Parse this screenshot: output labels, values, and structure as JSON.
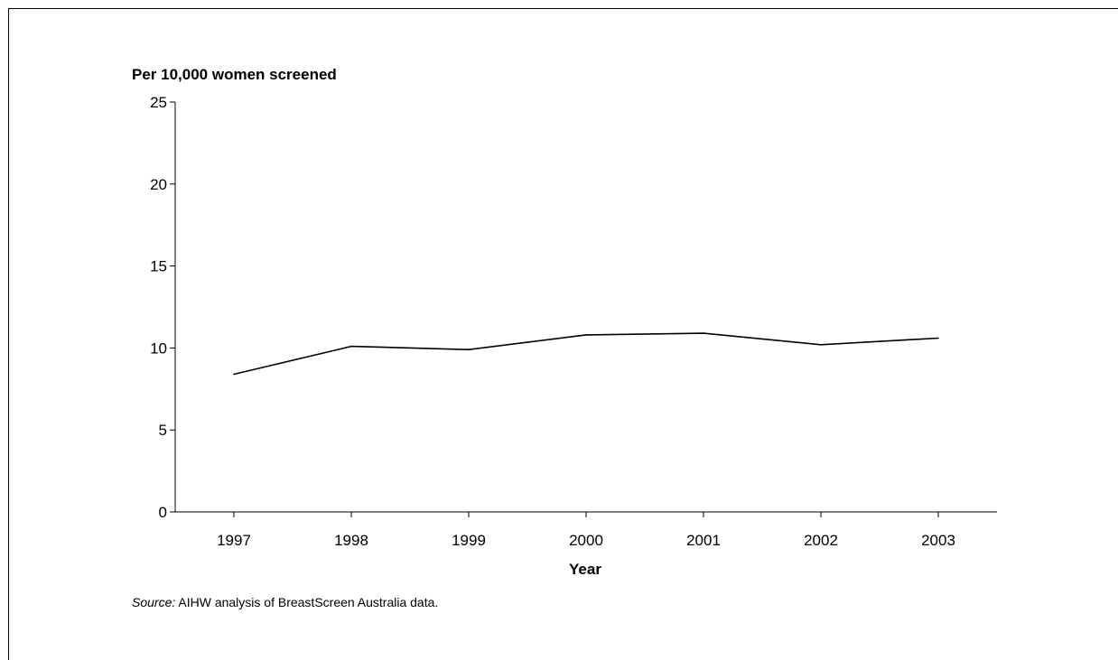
{
  "chart_data": {
    "type": "line",
    "title": "",
    "ylabel": "Per 10,000 women screened",
    "xlabel": "Year",
    "x": [
      "1997",
      "1998",
      "1999",
      "2000",
      "2001",
      "2002",
      "2003"
    ],
    "series": [
      {
        "values": [
          8.4,
          10.1,
          9.9,
          10.8,
          10.9,
          10.2,
          10.6
        ]
      }
    ],
    "ylim": [
      0,
      25
    ],
    "yticks": [
      0,
      5,
      10,
      15,
      20,
      25
    ],
    "grid": false,
    "legend": "none",
    "line_color": "#000000"
  },
  "source": {
    "label": "Source:",
    "text": "AIHW analysis of BreastScreen Australia data."
  }
}
